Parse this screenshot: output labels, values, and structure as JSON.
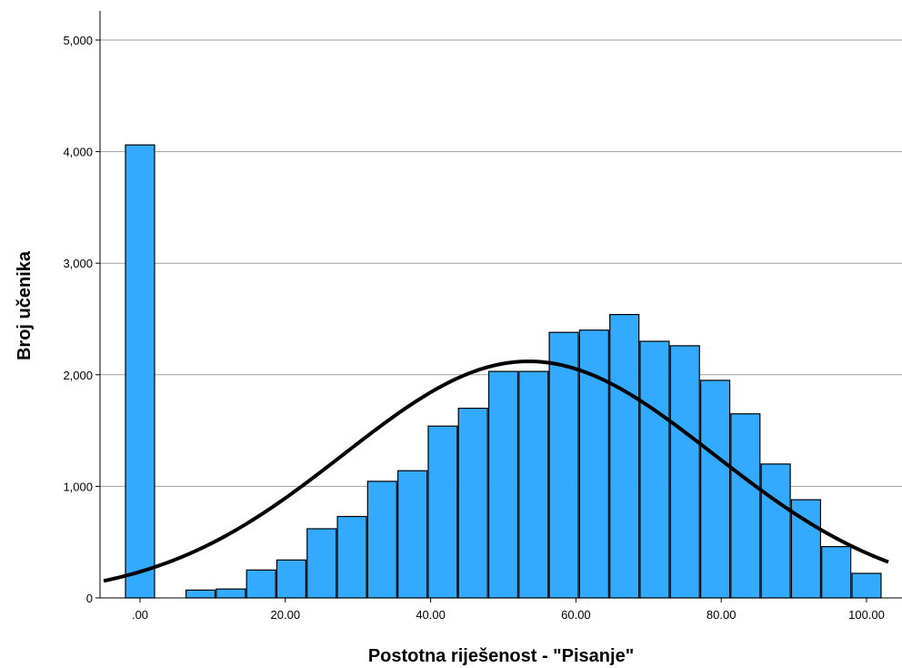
{
  "chart_data": {
    "type": "bar",
    "title": "",
    "xlabel": "Postotna riješenost - \"Pisanje\"",
    "ylabel": "Broj učenika",
    "x_ticks": [
      {
        "value": 0,
        "label": ".00"
      },
      {
        "value": 20,
        "label": "20.00"
      },
      {
        "value": 40,
        "label": "40.00"
      },
      {
        "value": 60,
        "label": "60.00"
      },
      {
        "value": 80,
        "label": "80.00"
      },
      {
        "value": 100,
        "label": "100.00"
      }
    ],
    "y_ticks": [
      {
        "value": 0,
        "label": "0"
      },
      {
        "value": 1000,
        "label": "1,000"
      },
      {
        "value": 2000,
        "label": "2,000"
      },
      {
        "value": 3000,
        "label": "3,000"
      },
      {
        "value": 4000,
        "label": "4,000"
      },
      {
        "value": 5000,
        "label": "5,000"
      }
    ],
    "xlim": [
      -5,
      103
    ],
    "ylim": [
      0,
      5300
    ],
    "grid": true,
    "bin_width": 4,
    "bins": [
      {
        "x": 0,
        "count": 4060
      },
      {
        "x": 8.33,
        "count": 70
      },
      {
        "x": 12.5,
        "count": 80
      },
      {
        "x": 16.67,
        "count": 250
      },
      {
        "x": 20.83,
        "count": 340
      },
      {
        "x": 25,
        "count": 620
      },
      {
        "x": 29.17,
        "count": 730
      },
      {
        "x": 33.33,
        "count": 1045
      },
      {
        "x": 37.5,
        "count": 1140
      },
      {
        "x": 41.67,
        "count": 1540
      },
      {
        "x": 45.83,
        "count": 1700
      },
      {
        "x": 50,
        "count": 2030
      },
      {
        "x": 54.17,
        "count": 2030
      },
      {
        "x": 58.33,
        "count": 2380
      },
      {
        "x": 62.5,
        "count": 2400
      },
      {
        "x": 66.67,
        "count": 2540
      },
      {
        "x": 70.83,
        "count": 2300
      },
      {
        "x": 75,
        "count": 2260
      },
      {
        "x": 79.17,
        "count": 1950
      },
      {
        "x": 83.33,
        "count": 1650
      },
      {
        "x": 87.5,
        "count": 1200
      },
      {
        "x": 91.67,
        "count": 880
      },
      {
        "x": 95.83,
        "count": 460
      },
      {
        "x": 100,
        "count": 220
      }
    ],
    "normal_curve": {
      "mean": 53.5,
      "sd": 25.5,
      "peak": 2120
    },
    "colors": {
      "bar_fill": "#34aaff",
      "bar_stroke": "#000000",
      "curve": "#000000",
      "grid": "#a0a0a0"
    }
  }
}
